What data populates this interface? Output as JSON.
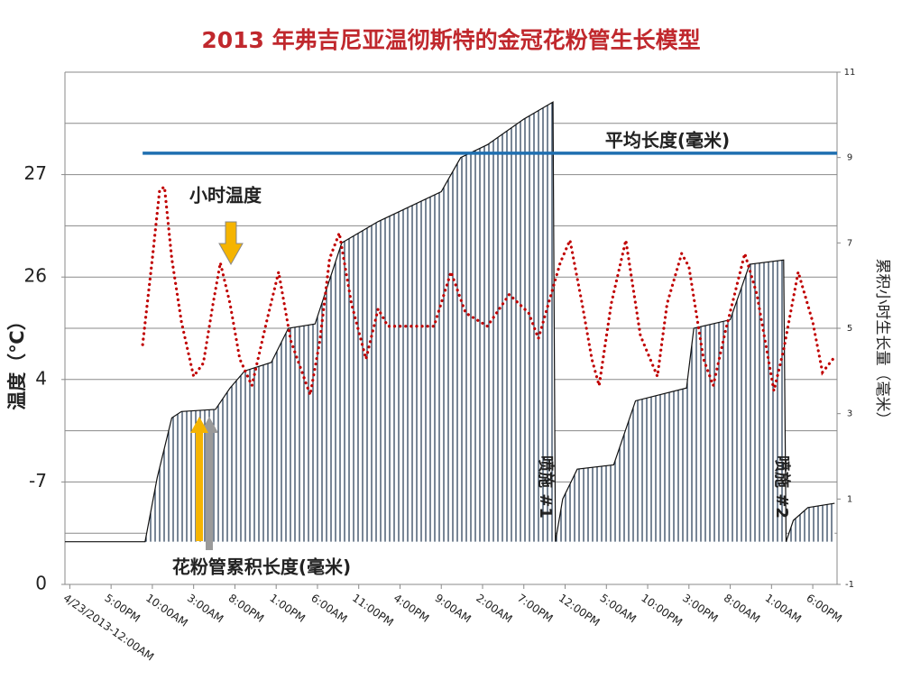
{
  "chart_data": {
    "type": "line",
    "title": "2013 年弗吉尼亚温彻斯特的金冠花粉管生长模型",
    "ylabel": "温度（℃）",
    "y2label": "累积小时生长量（毫米）",
    "xlim": [
      -2,
      316
    ],
    "xticks": [
      {
        "value": 0,
        "label": "4/23/2013-12:00AM"
      },
      {
        "value": 17,
        "label": "5:00PM"
      },
      {
        "value": 34,
        "label": "10:00AM"
      },
      {
        "value": 51,
        "label": "3:00AM"
      },
      {
        "value": 68,
        "label": "8:00PM"
      },
      {
        "value": 85,
        "label": "1:00PM"
      },
      {
        "value": 102,
        "label": "6:00AM"
      },
      {
        "value": 119,
        "label": "11:00PM"
      },
      {
        "value": 136,
        "label": "4:00PM"
      },
      {
        "value": 153,
        "label": "9:00AM"
      },
      {
        "value": 170,
        "label": "2:00AM"
      },
      {
        "value": 187,
        "label": "7:00PM"
      },
      {
        "value": 204,
        "label": "12:00PM"
      },
      {
        "value": 221,
        "label": "5:00AM"
      },
      {
        "value": 238,
        "label": "10:00PM"
      },
      {
        "value": 255,
        "label": "3:00PM"
      },
      {
        "value": 272,
        "label": "8:00AM"
      },
      {
        "value": 289,
        "label": "1:00AM"
      },
      {
        "value": 306,
        "label": "6:00PM"
      }
    ],
    "ylim": [
      0,
      5
    ],
    "yticks": [
      {
        "value": 0,
        "label": "0"
      },
      {
        "value": 1,
        "label": "-7"
      },
      {
        "value": 2,
        "label": "4"
      },
      {
        "value": 3,
        "label": "26"
      },
      {
        "value": 4,
        "label": "27"
      }
    ],
    "ygrid": [
      0.5,
      1,
      1.5,
      2,
      2.5,
      3,
      3.5,
      4,
      4.5,
      5
    ],
    "y2lim": [
      -1,
      11
    ],
    "y2ticks": [
      -1,
      1,
      3,
      5,
      7,
      9,
      11
    ],
    "grid": true,
    "series": [
      {
        "name": "花粉管累积长度(毫米)",
        "type": "area",
        "axis": "y2",
        "color": "#1f3550",
        "x": [
          -2,
          31,
          36,
          42,
          46,
          60,
          66,
          72,
          83,
          90,
          101,
          112,
          127,
          153,
          161,
          172,
          187,
          199,
          200,
          203,
          209,
          224,
          233,
          254,
          257,
          272,
          280,
          294,
          295,
          298,
          304,
          315
        ],
        "values": [
          0,
          0,
          1.5,
          2.9,
          3.05,
          3.1,
          3.6,
          4.0,
          4.2,
          5.0,
          5.1,
          7.0,
          7.5,
          8.2,
          9.0,
          9.3,
          9.9,
          10.3,
          0,
          1.0,
          1.7,
          1.8,
          3.3,
          3.6,
          5.0,
          5.2,
          6.5,
          6.6,
          0,
          0.5,
          0.8,
          0.9
        ]
      },
      {
        "name": "小时温度",
        "type": "dotted",
        "color": "#c00000",
        "x": [
          30,
          34,
          37,
          39,
          42,
          46,
          51,
          55,
          59,
          62,
          66,
          70,
          75,
          81,
          86,
          91,
          99,
          103,
          107,
          111,
          116,
          122,
          127,
          131,
          150,
          157,
          163,
          172,
          181,
          189,
          193,
          202,
          206,
          211,
          215,
          218,
          223,
          229,
          235,
          242,
          246,
          252,
          255,
          261,
          265,
          270,
          278,
          283,
          290,
          294,
          300,
          306,
          310,
          315
        ],
        "values": [
          2.34,
          3.18,
          3.85,
          3.88,
          3.18,
          2.56,
          2.03,
          2.16,
          2.74,
          3.14,
          2.74,
          2.2,
          1.94,
          2.56,
          3.05,
          2.38,
          1.85,
          2.38,
          3.18,
          3.43,
          2.74,
          2.2,
          2.69,
          2.52,
          2.52,
          3.05,
          2.65,
          2.52,
          2.83,
          2.65,
          2.4,
          3.14,
          3.36,
          2.74,
          2.2,
          1.94,
          2.74,
          3.36,
          2.43,
          2.03,
          2.74,
          3.23,
          3.1,
          2.2,
          1.94,
          2.47,
          3.23,
          2.83,
          1.89,
          2.29,
          3.05,
          2.56,
          2.07,
          2.22
        ]
      },
      {
        "name": "平均长度(毫米)",
        "type": "solid",
        "axis": "y2",
        "color": "#1f6fb0",
        "x": [
          30,
          316
        ],
        "values": [
          9.1,
          9.1
        ]
      }
    ],
    "annotations": [
      "喷施 #1",
      "喷施 #2"
    ]
  }
}
